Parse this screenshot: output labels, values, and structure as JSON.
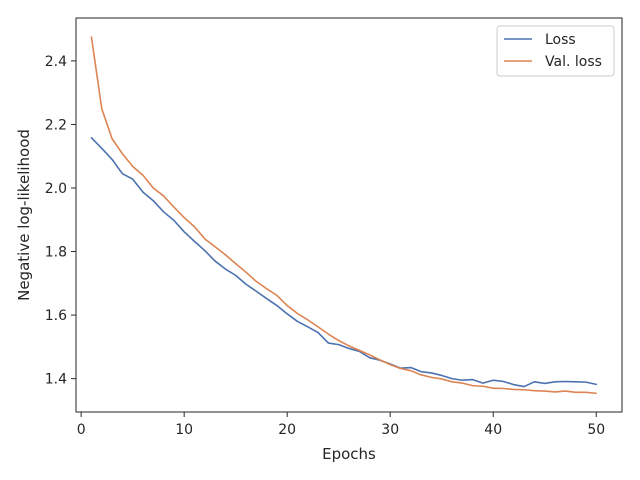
{
  "chart_data": {
    "type": "line",
    "xlabel": "Epochs",
    "ylabel": "Negative log-likelihood",
    "xlim": [
      -0.5,
      52.5
    ],
    "ylim": [
      1.295,
      2.535
    ],
    "x_ticks": [
      0,
      10,
      20,
      30,
      40,
      50
    ],
    "y_ticks": [
      1.4,
      1.6,
      1.8,
      2.0,
      2.2,
      2.4
    ],
    "x_tick_labels": [
      "0",
      "10",
      "20",
      "30",
      "40",
      "50"
    ],
    "y_tick_labels": [
      "1.4",
      "1.6",
      "1.8",
      "2.0",
      "2.2",
      "2.4"
    ],
    "grid": false,
    "legend_position": "top-right",
    "x": [
      1,
      2,
      3,
      4,
      5,
      6,
      7,
      8,
      9,
      10,
      11,
      12,
      13,
      14,
      15,
      16,
      17,
      18,
      19,
      20,
      21,
      22,
      23,
      24,
      25,
      26,
      27,
      28,
      29,
      30,
      31,
      32,
      33,
      34,
      35,
      36,
      37,
      38,
      39,
      40,
      41,
      42,
      43,
      44,
      45,
      46,
      47,
      48,
      49,
      50
    ],
    "series": [
      {
        "name": "Loss",
        "color": "#4c72b0",
        "values": [
          2.158,
          2.125,
          2.09,
          2.045,
          2.028,
          1.987,
          1.96,
          1.925,
          1.898,
          1.862,
          1.832,
          1.803,
          1.77,
          1.745,
          1.725,
          1.697,
          1.675,
          1.652,
          1.63,
          1.604,
          1.58,
          1.563,
          1.545,
          1.512,
          1.507,
          1.495,
          1.486,
          1.466,
          1.458,
          1.446,
          1.433,
          1.435,
          1.422,
          1.418,
          1.41,
          1.4,
          1.395,
          1.397,
          1.386,
          1.395,
          1.391,
          1.381,
          1.375,
          1.39,
          1.385,
          1.39,
          1.391,
          1.39,
          1.389,
          1.382
        ]
      },
      {
        "name": "Val. loss",
        "color": "#dd8452",
        "values": [
          2.475,
          2.25,
          2.155,
          2.108,
          2.068,
          2.04,
          2.0,
          1.975,
          1.94,
          1.907,
          1.878,
          1.84,
          1.815,
          1.79,
          1.762,
          1.735,
          1.706,
          1.683,
          1.662,
          1.63,
          1.605,
          1.585,
          1.563,
          1.54,
          1.52,
          1.503,
          1.489,
          1.475,
          1.459,
          1.444,
          1.432,
          1.425,
          1.412,
          1.404,
          1.399,
          1.39,
          1.386,
          1.378,
          1.376,
          1.37,
          1.369,
          1.366,
          1.365,
          1.362,
          1.361,
          1.358,
          1.361,
          1.357,
          1.357,
          1.354
        ]
      }
    ]
  }
}
